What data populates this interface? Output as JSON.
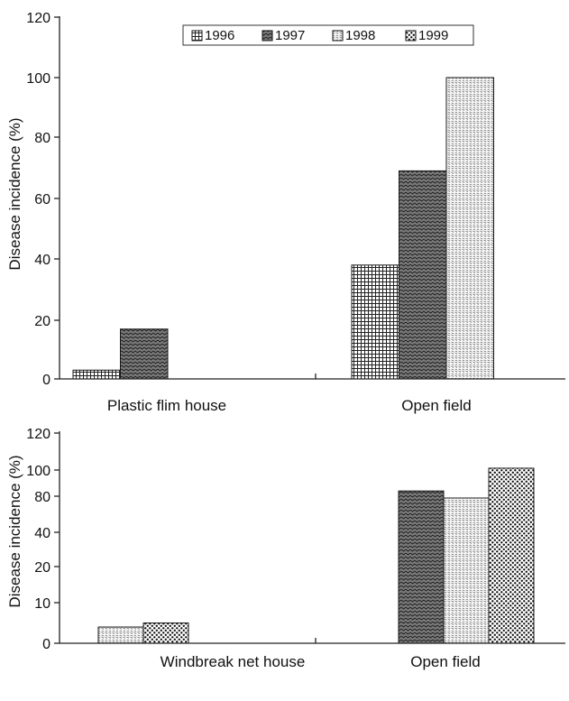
{
  "chart_data": [
    {
      "type": "bar",
      "categories": [
        "Plastic flim house",
        "Open field"
      ],
      "series": [
        {
          "name": "1996",
          "values": [
            3,
            38
          ],
          "pattern": "grid"
        },
        {
          "name": "1997",
          "values": [
            17,
            69
          ],
          "pattern": "wave"
        },
        {
          "name": "1998",
          "values": [
            null,
            100
          ],
          "pattern": "dots-light"
        },
        {
          "name": "1999",
          "values": [
            null,
            null
          ],
          "pattern": "dots-dark"
        }
      ],
      "ylabel": "Disease incidence (%)",
      "yticks": [
        "0",
        "20",
        "40",
        "60",
        "80",
        "100",
        "120"
      ],
      "ylim": [
        0,
        120
      ],
      "legend": "top-right, inside plot, boxed, horizontal",
      "grid": false
    },
    {
      "type": "bar",
      "categories": [
        "Windbreak net house",
        "Open field"
      ],
      "series": [
        {
          "name": "1996",
          "values": [
            null,
            null
          ],
          "pattern": "grid"
        },
        {
          "name": "1997",
          "values": [
            null,
            84
          ],
          "pattern": "wave"
        },
        {
          "name": "1998",
          "values": [
            4,
            78
          ],
          "pattern": "dots-light"
        },
        {
          "name": "1999",
          "values": [
            5,
            101
          ],
          "pattern": "dots-dark"
        }
      ],
      "ylabel": "Disease incidence (%)",
      "yticks": [
        "0",
        "10",
        "20",
        "40",
        "80",
        "100",
        "120"
      ],
      "ylim": [
        0,
        120
      ],
      "grid": false
    }
  ]
}
